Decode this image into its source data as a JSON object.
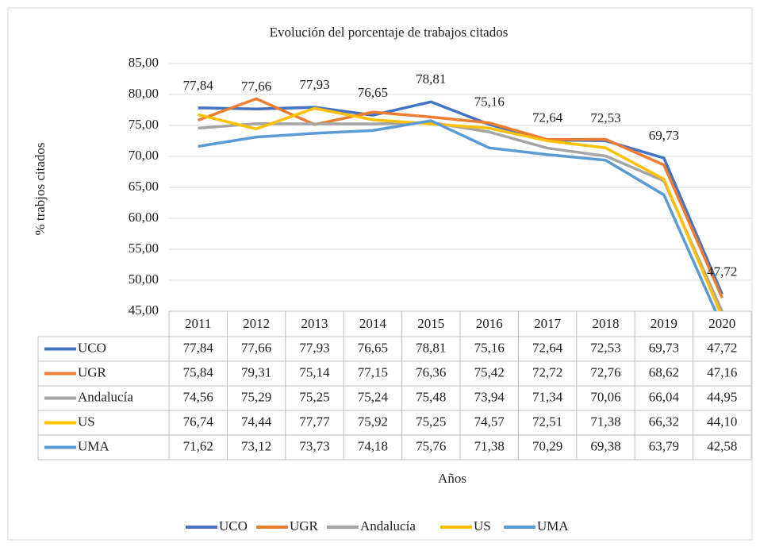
{
  "chart_data": {
    "type": "line",
    "title": "Evolución del porcentaje de trabajos citados",
    "y_label": "% trabjos citados",
    "x_label": "Años",
    "categories": [
      "2011",
      "2012",
      "2013",
      "2014",
      "2015",
      "2016",
      "2017",
      "2018",
      "2019",
      "2020"
    ],
    "series": [
      {
        "name": "UCO",
        "color": "#4472c4",
        "values": [
          77.84,
          77.66,
          77.93,
          76.65,
          78.81,
          75.16,
          72.64,
          72.53,
          69.73,
          47.72
        ],
        "value_labels": [
          "77,84",
          "77,66",
          "77,93",
          "76,65",
          "78,81",
          "75,16",
          "72,64",
          "72,53",
          "69,73",
          "47,72"
        ]
      },
      {
        "name": "UGR",
        "color": "#ed7d31",
        "values": [
          75.84,
          79.31,
          75.14,
          77.15,
          76.36,
          75.42,
          72.72,
          72.76,
          68.62,
          47.16
        ],
        "value_labels": [
          "75,84",
          "79,31",
          "75,14",
          "77,15",
          "76,36",
          "75,42",
          "72,72",
          "72,76",
          "68,62",
          "47,16"
        ]
      },
      {
        "name": "Andalucía",
        "color": "#a5a5a5",
        "values": [
          74.56,
          75.29,
          75.25,
          75.24,
          75.48,
          73.94,
          71.34,
          70.06,
          66.04,
          44.95
        ],
        "value_labels": [
          "74,56",
          "75,29",
          "75,25",
          "75,24",
          "75,48",
          "73,94",
          "71,34",
          "70,06",
          "66,04",
          "44,95"
        ]
      },
      {
        "name": "US",
        "color": "#ffc000",
        "values": [
          76.74,
          74.44,
          77.77,
          75.92,
          75.25,
          74.57,
          72.51,
          71.38,
          66.32,
          44.1
        ],
        "value_labels": [
          "76,74",
          "74,44",
          "77,77",
          "75,92",
          "75,25",
          "74,57",
          "72,51",
          "71,38",
          "66,32",
          "44,10"
        ]
      },
      {
        "name": "UMA",
        "color": "#5b9bd5",
        "values": [
          71.62,
          73.12,
          73.73,
          74.18,
          75.76,
          71.38,
          70.29,
          69.38,
          63.79,
          42.58
        ],
        "value_labels": [
          "71,62",
          "73,12",
          "73,73",
          "74,18",
          "75,76",
          "71,38",
          "70,29",
          "69,38",
          "63,79",
          "42,58"
        ]
      }
    ],
    "data_labels_series": 0,
    "ylim": [
      45,
      85
    ],
    "yticks": [
      {
        "value": 45,
        "label": "45,00"
      },
      {
        "value": 50,
        "label": "50,00"
      },
      {
        "value": 55,
        "label": "55,00"
      },
      {
        "value": 60,
        "label": "60,00"
      },
      {
        "value": 65,
        "label": "65,00"
      },
      {
        "value": 70,
        "label": "70,00"
      },
      {
        "value": 75,
        "label": "75,00"
      },
      {
        "value": 80,
        "label": "80,00"
      },
      {
        "value": 85,
        "label": "85,00"
      }
    ],
    "grid": true,
    "legend": "bottom"
  }
}
